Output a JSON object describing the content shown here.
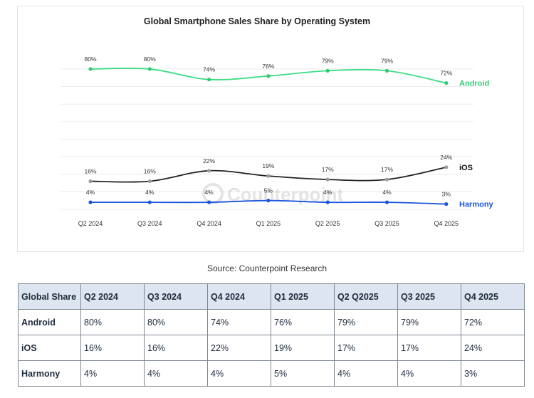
{
  "chart_data": {
    "type": "line",
    "title": "Global Smartphone Sales Share by Operating System",
    "categories": [
      "Q2 2024",
      "Q3 2024",
      "Q4 2024",
      "Q1 2025",
      "Q2 2025",
      "Q3 2025",
      "Q4 2025"
    ],
    "series": [
      {
        "name": "Android",
        "values": [
          80,
          80,
          74,
          76,
          79,
          79,
          72
        ],
        "labels": [
          "80%",
          "80%",
          "74%",
          "76%",
          "79%",
          "79%",
          "72%"
        ],
        "color": "#3ddc84",
        "label_color": "#2ecc71",
        "point_color": "#2ecc71"
      },
      {
        "name": "iOS",
        "values": [
          16,
          16,
          22,
          19,
          17,
          17,
          24
        ],
        "labels": [
          "16%",
          "16%",
          "22%",
          "19%",
          "17%",
          "17%",
          "24%"
        ],
        "color": "#222222",
        "label_color": "#111111",
        "point_color": "#9a9a9a"
      },
      {
        "name": "Harmony",
        "values": [
          4,
          4,
          4,
          5,
          4,
          4,
          3
        ],
        "labels": [
          "4%",
          "4%",
          "4%",
          "5%",
          "4%",
          "4%",
          "3%"
        ],
        "color": "#1a56db",
        "label_color": "#1a56db",
        "point_color": "#1a56db"
      }
    ],
    "ylim": [
      0,
      100
    ],
    "grid": true,
    "legend": "inline-right",
    "watermark": "Counterpoint"
  },
  "source": "Source: Counterpoint Research",
  "table": {
    "headers": [
      "Global Share",
      "Q2 2024",
      "Q3 2024",
      "Q4 2024",
      "Q1 2025",
      "Q2 Q2025",
      "Q3 2025",
      "Q4 2025"
    ],
    "rows": [
      [
        "Android",
        "80%",
        "80%",
        "74%",
        "76%",
        "79%",
        "79%",
        "72%"
      ],
      [
        "iOS",
        "16%",
        "16%",
        "22%",
        "19%",
        "17%",
        "17%",
        "24%"
      ],
      [
        "Harmony",
        "4%",
        "4%",
        "4%",
        "5%",
        "4%",
        "4%",
        "3%"
      ]
    ]
  }
}
